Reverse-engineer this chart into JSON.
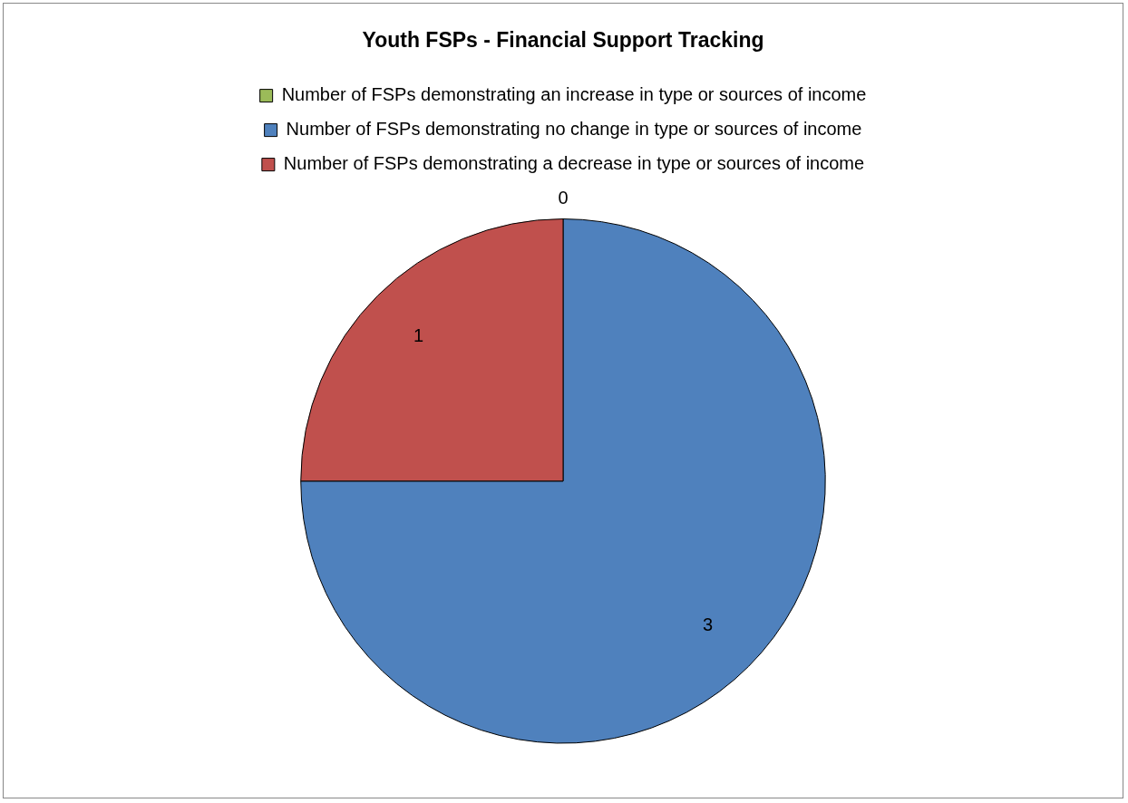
{
  "chart_data": {
    "type": "pie",
    "title": "Youth FSPs - Financial Support Tracking",
    "categories": [
      "Number of FSPs demonstrating an increase in type or sources of income",
      "Number of FSPs demonstrating no change in type or sources of income",
      "Number of FSPs demonstrating a decrease in type or sources of income"
    ],
    "values": [
      0,
      3,
      1
    ],
    "colors": [
      "#9bbb59",
      "#4f81bd",
      "#c0504d"
    ],
    "value_labels": [
      "0",
      "3",
      "1"
    ],
    "legend": "top"
  }
}
